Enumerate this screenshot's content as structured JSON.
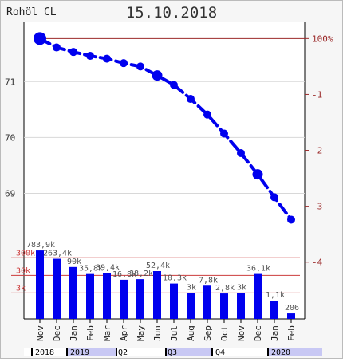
{
  "chart_data": {
    "type": "line",
    "title": "15.10.2018",
    "instrument": "Rohöl CL",
    "categories": [
      "Nov",
      "Dec",
      "Jan",
      "Feb",
      "Mar",
      "Apr",
      "May",
      "Jun",
      "Jul",
      "Aug",
      "Sep",
      "Oct",
      "Nov",
      "Dec",
      "Jan",
      "Feb"
    ],
    "price_series": {
      "values": [
        71.77,
        71.61,
        71.53,
        71.46,
        71.41,
        71.33,
        71.27,
        71.11,
        70.94,
        70.69,
        70.41,
        70.07,
        69.72,
        69.34,
        68.93,
        68.53
      ],
      "axis_ticks": [
        69,
        70,
        71
      ],
      "ylim": [
        68.18,
        72.06
      ]
    },
    "pct_axis": {
      "ticks": [
        "100%",
        "-1",
        "-2",
        "-3",
        "-4"
      ]
    },
    "volume_series": {
      "values": [
        783.9,
        263.4,
        90,
        35.8,
        39.4,
        16.8,
        18.2,
        52.4,
        10.3,
        3,
        7.8,
        2.8,
        3,
        36.1,
        1.1,
        0.206
      ],
      "labels": [
        "783,9k",
        "263,4k",
        "90k",
        "35,8k",
        "39,4k",
        "16,8k",
        "18,2k",
        "52,4k",
        "10,3k",
        "3k",
        "7,8k",
        "2,8k",
        "3k",
        "36,1k",
        "1,1k",
        "206"
      ],
      "scale": "log",
      "ref_lines": [
        "300k",
        "30k",
        "3k"
      ]
    },
    "timeline": {
      "years": [
        "2018",
        "2019",
        "2020"
      ],
      "quarters": [
        "Q2",
        "Q3",
        "Q4"
      ]
    },
    "colors": {
      "series": "#0000ee",
      "reference": "#cc3b3b",
      "grid": "#d8d8d8",
      "timeline_band": "#c8c8f4"
    }
  }
}
